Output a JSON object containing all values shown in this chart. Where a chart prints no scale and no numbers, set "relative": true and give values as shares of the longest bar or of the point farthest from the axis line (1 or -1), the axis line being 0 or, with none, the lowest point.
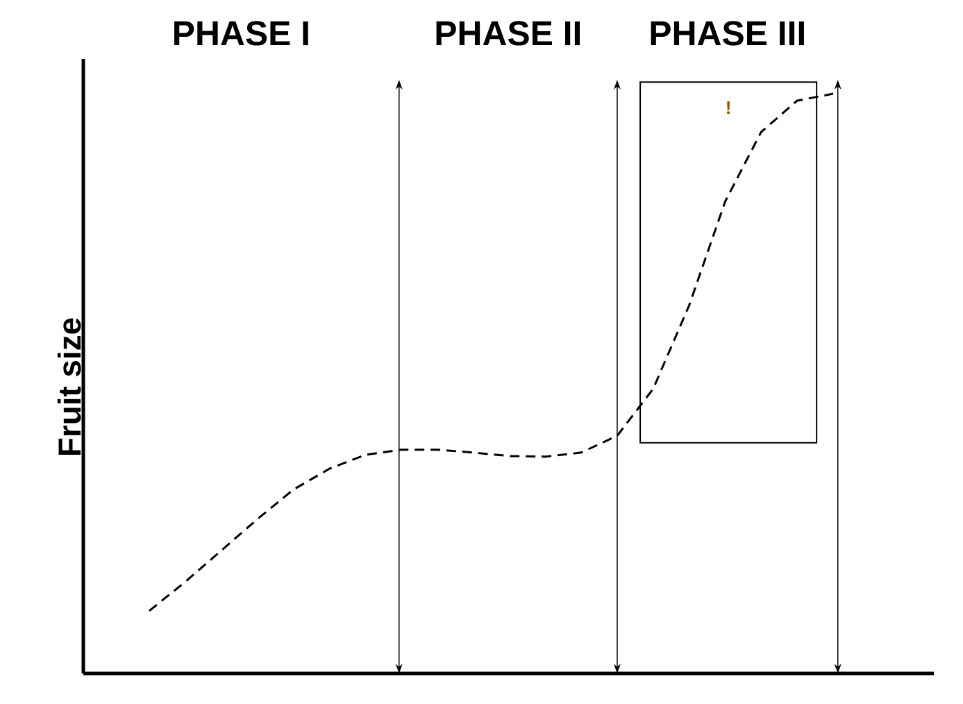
{
  "chart_data": {
    "type": "line",
    "relative": true,
    "ylabel": "Fruit size",
    "categories": [
      null,
      null,
      null,
      null,
      null,
      null,
      null,
      null,
      null,
      null,
      null,
      null,
      null,
      null,
      null,
      null,
      null,
      null,
      null,
      null
    ],
    "series": [
      {
        "color": "#000000",
        "values": [
          0.108,
          0.158,
          0.212,
          0.266,
          0.317,
          0.353,
          0.377,
          0.386,
          0.386,
          0.381,
          0.375,
          0.374,
          0.381,
          0.41,
          0.491,
          0.635,
          0.814,
          0.934,
          0.988,
          1
        ]
      }
    ],
    "line_style": "dashed",
    "marker": "none",
    "annotations": [
      "PHASE I",
      "PHASE II",
      "PHASE III",
      "!"
    ]
  }
}
